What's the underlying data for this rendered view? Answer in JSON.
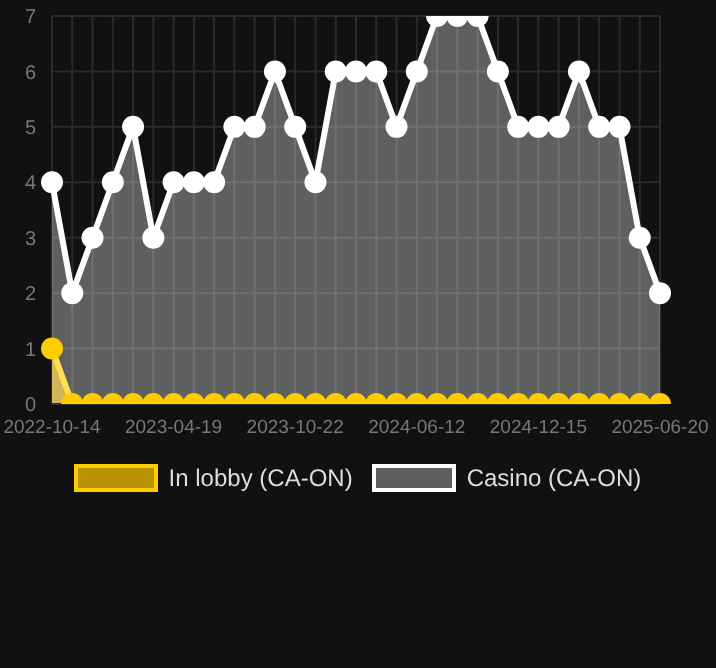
{
  "chart_data": {
    "type": "area",
    "categories": [
      "2022-10-14",
      null,
      null,
      null,
      null,
      null,
      "2023-04-19",
      null,
      null,
      null,
      null,
      null,
      "2023-10-22",
      null,
      null,
      null,
      null,
      null,
      "2024-06-12",
      null,
      null,
      null,
      null,
      null,
      "2024-12-15",
      null,
      null,
      null,
      null,
      null,
      "2025-06-20"
    ],
    "series": [
      {
        "name": "In lobby (CA-ON)",
        "color": "#ffcc00",
        "values": [
          1,
          0,
          0,
          0,
          0,
          0,
          0,
          0,
          0,
          0,
          0,
          0,
          0,
          0,
          0,
          0,
          0,
          0,
          0,
          0,
          0,
          0,
          0,
          0,
          0,
          0,
          0,
          0,
          0,
          0,
          0
        ]
      },
      {
        "name": "Casino (CA-ON)",
        "color": "#ffffff",
        "values": [
          4,
          2,
          3,
          4,
          5,
          3,
          4,
          4,
          4,
          5,
          5,
          6,
          5,
          4,
          6,
          6,
          6,
          5,
          6,
          7,
          7,
          7,
          6,
          5,
          5,
          5,
          6,
          5,
          5,
          3,
          2
        ]
      }
    ],
    "ylim": [
      0,
      7
    ],
    "yticks": [
      0,
      1,
      2,
      3,
      4,
      5,
      6,
      7
    ],
    "grid": true,
    "legend": "bottom",
    "marker": "circle",
    "line_style": "solid"
  }
}
